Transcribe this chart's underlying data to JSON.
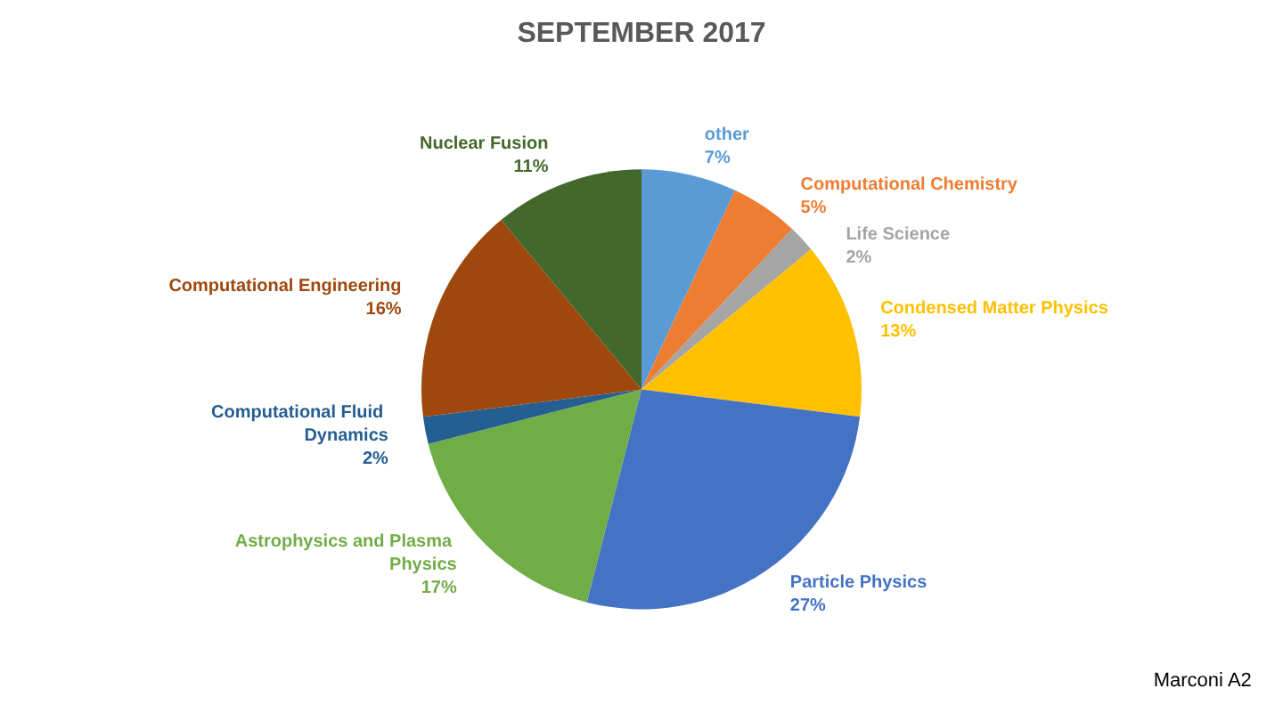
{
  "chart_data": {
    "type": "pie",
    "title": "SEPTEMBER 2017",
    "categories": [
      "other",
      "Computational Chemistry",
      "Life Science",
      "Condensed Matter Physics",
      "Particle Physics",
      "Astrophysics and Plasma Physics",
      "Computational Fluid Dynamics",
      "Computational Engineering",
      "Nuclear Fusion"
    ],
    "values": [
      7,
      5,
      2,
      13,
      27,
      17,
      2,
      16,
      11
    ],
    "colors": [
      "#5b9bd5",
      "#ed7d31",
      "#a5a5a5",
      "#ffc000",
      "#4472c4",
      "#70ad47",
      "#255e91",
      "#9e480e",
      "#43682b"
    ],
    "value_labels": [
      "7%",
      "5%",
      "2%",
      "13%",
      "27%",
      "17%",
      "2%",
      "16%",
      "11%"
    ],
    "annotations": [
      "Marconi A2"
    ]
  }
}
